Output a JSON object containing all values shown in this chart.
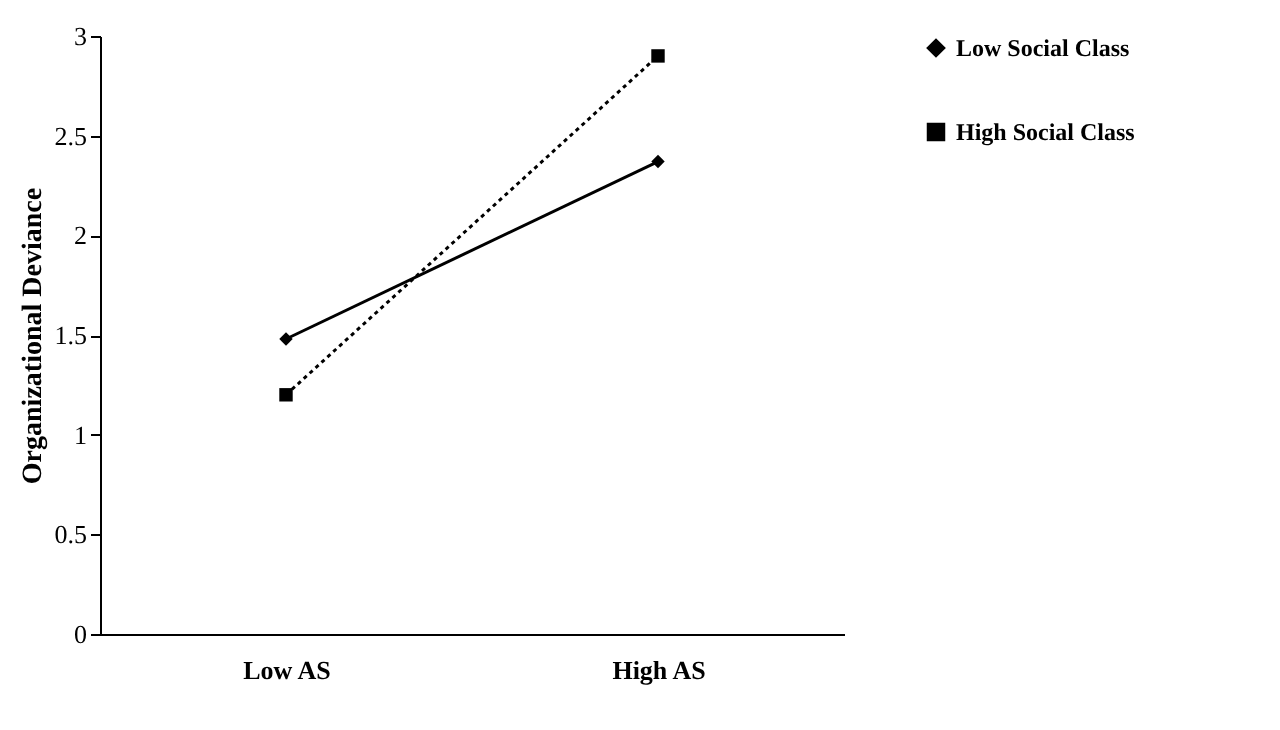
{
  "chart_data": {
    "type": "line",
    "ylabel": "Organizational Deviance",
    "categories": [
      "Low AS",
      "High AS"
    ],
    "series": [
      {
        "name": "Low Social Class",
        "color": "#000000",
        "values": [
          1.48,
          2.37
        ],
        "marker": "diamond",
        "line_style": "solid"
      },
      {
        "name": "High Social Class",
        "color": "#000000",
        "values": [
          1.2,
          2.9
        ],
        "marker": "square",
        "line_style": "dotted"
      }
    ],
    "ylim": [
      0,
      3
    ],
    "yticks": [
      0,
      0.5,
      1,
      1.5,
      2,
      2.5,
      3
    ],
    "grid": false,
    "legend": "right"
  }
}
